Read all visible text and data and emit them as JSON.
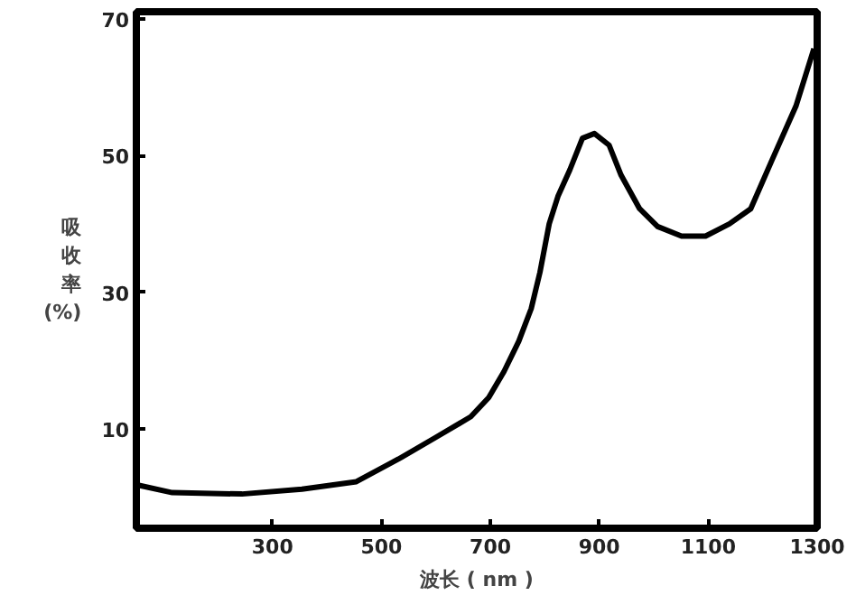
{
  "chart_data": {
    "type": "line",
    "xlabel": "波长 ( nm )",
    "ylabel": "吸收率(%)",
    "xlim": [
      50,
      1300
    ],
    "ylim": [
      -4.5,
      71
    ],
    "xticks": [
      300,
      500,
      700,
      900,
      1100,
      1300
    ],
    "yticks": [
      10,
      30,
      50,
      70
    ],
    "x": [
      53,
      116,
      244,
      354,
      454,
      531,
      598,
      664,
      697,
      725,
      752,
      775,
      791,
      808,
      824,
      846,
      869,
      891,
      918,
      940,
      974,
      1007,
      1051,
      1095,
      1139,
      1178,
      1217,
      1261,
      1294
    ],
    "series": [
      {
        "color": "#000000",
        "values": [
          1.8,
          0.7,
          0.5,
          1.2,
          2.3,
          5.6,
          8.7,
          11.8,
          14.6,
          18.4,
          22.8,
          27.6,
          32.9,
          40,
          44,
          47.9,
          52.5,
          53.2,
          51.5,
          47.1,
          42.2,
          39.6,
          38.2,
          38.2,
          40,
          42.2,
          49.3,
          57.2,
          65.6
        ]
      }
    ],
    "grid": false,
    "marker": "none",
    "line_style": "solid"
  }
}
